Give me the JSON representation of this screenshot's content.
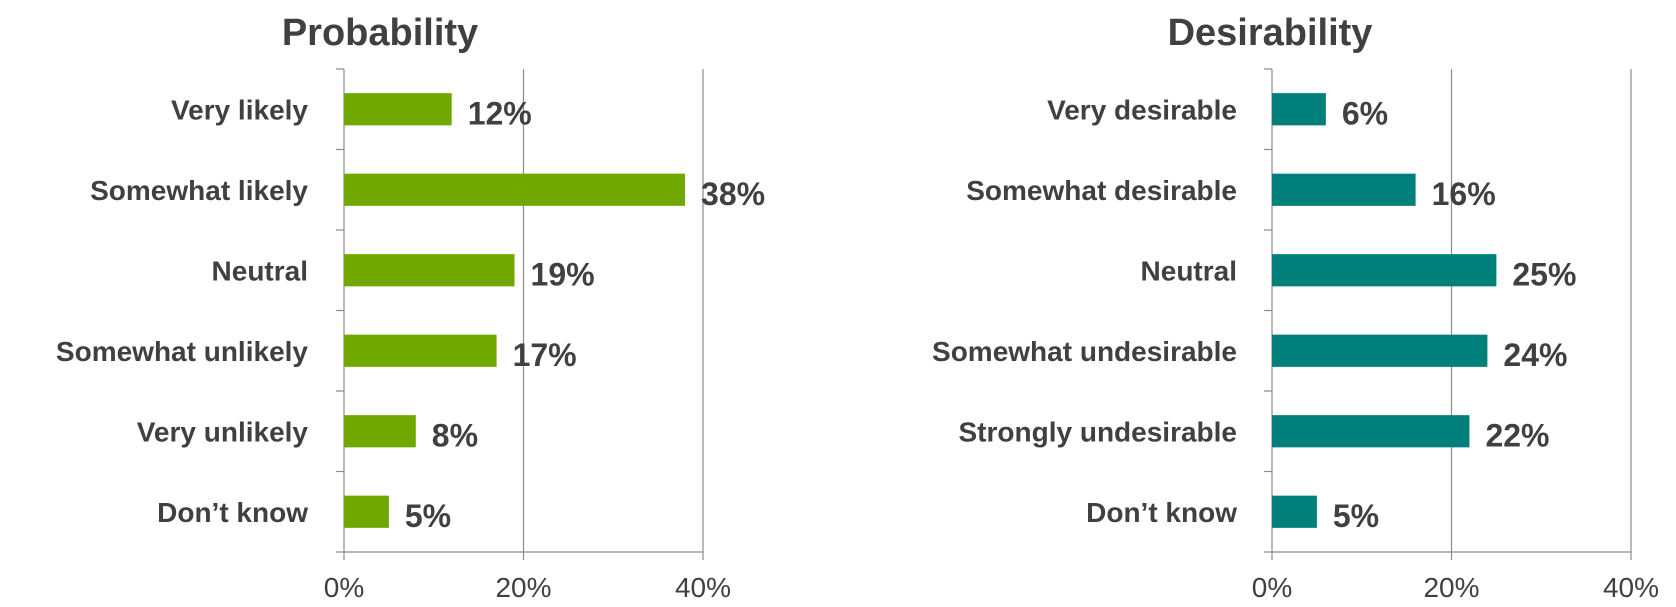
{
  "chart_data": [
    {
      "type": "bar",
      "orientation": "horizontal",
      "title": "Probability",
      "categories": [
        "Very likely",
        "Somewhat likely",
        "Neutral",
        "Somewhat unlikely",
        "Very unlikely",
        "Don’t know"
      ],
      "values": [
        12,
        38,
        19,
        17,
        8,
        5
      ],
      "value_labels": [
        "12%",
        "38%",
        "19%",
        "17%",
        "8%",
        "5%"
      ],
      "x_ticks": [
        "0%",
        "20%",
        "40%"
      ],
      "xlim": [
        0,
        40
      ],
      "grid": true,
      "color": "#70a800"
    },
    {
      "type": "bar",
      "orientation": "horizontal",
      "title": "Desirability",
      "categories": [
        "Very desirable",
        "Somewhat desirable",
        "Neutral",
        "Somewhat undesirable",
        "Strongly undesirable",
        "Don’t know"
      ],
      "values": [
        6,
        16,
        25,
        24,
        22,
        5
      ],
      "value_labels": [
        "6%",
        "16%",
        "25%",
        "24%",
        "22%",
        "5%"
      ],
      "x_ticks": [
        "0%",
        "20%",
        "40%"
      ],
      "xlim": [
        0,
        40
      ],
      "grid": true,
      "color": "#007f7b"
    }
  ]
}
